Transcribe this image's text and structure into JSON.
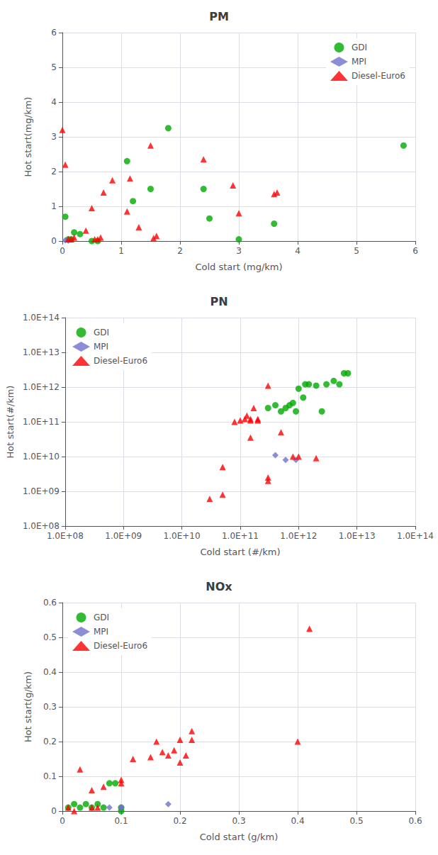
{
  "chart_data": [
    {
      "type": "scatter",
      "title": "PM",
      "xlabel": "Cold start (mg/km)",
      "ylabel": "Hot start(mg/km)",
      "xlim": [
        0,
        6
      ],
      "ylim": [
        0,
        6
      ],
      "xticks": [
        0,
        1,
        2,
        3,
        4,
        5,
        6
      ],
      "yticks": [
        0,
        1,
        2,
        3,
        4,
        5,
        6
      ],
      "grid": true,
      "legend": "upper right",
      "series": [
        {
          "name": "GDI",
          "color": "#00aa00",
          "marker": "circle",
          "x": [
            0.05,
            0.1,
            0.15,
            0.2,
            0.3,
            0.5,
            0.6,
            1.1,
            1.2,
            1.5,
            1.8,
            2.4,
            2.5,
            3.0,
            3.6,
            5.8
          ],
          "values": [
            0.7,
            0.05,
            0.05,
            0.25,
            0.2,
            0.0,
            0.0,
            2.3,
            1.15,
            1.5,
            3.25,
            1.5,
            0.65,
            0.05,
            0.5,
            2.75
          ]
        },
        {
          "name": "MPI",
          "color": "#7070cc",
          "marker": "diamond",
          "x": [
            0.05,
            0.1
          ],
          "values": [
            0.02,
            0.01
          ]
        },
        {
          "name": "Diesel-Euro6",
          "color": "#ff0000",
          "marker": "triangle",
          "x": [
            0.0,
            0.05,
            0.1,
            0.15,
            0.2,
            0.4,
            0.5,
            0.55,
            0.6,
            0.65,
            0.7,
            0.85,
            1.1,
            1.15,
            1.3,
            1.5,
            1.55,
            1.6,
            2.4,
            2.9,
            3.0,
            3.6,
            3.65
          ],
          "values": [
            3.2,
            2.2,
            0.05,
            0.05,
            0.1,
            0.3,
            0.95,
            0.05,
            0.05,
            0.1,
            1.4,
            1.75,
            0.85,
            1.8,
            0.4,
            2.75,
            0.08,
            0.15,
            2.35,
            1.6,
            0.8,
            1.35,
            1.4
          ]
        }
      ]
    },
    {
      "type": "scatter",
      "title": "PN",
      "xlabel": "Cold start (#/km)",
      "ylabel": "Hot start(#/km)",
      "log": true,
      "xlim": [
        100000000.0,
        100000000000000.0
      ],
      "ylim": [
        100000000.0,
        100000000000000.0
      ],
      "xticks": [
        {
          "value": 100000000.0,
          "label": "1.0E+08"
        },
        {
          "value": 1000000000.0,
          "label": "1.0E+09"
        },
        {
          "value": 10000000000.0,
          "label": "1.0E+10"
        },
        {
          "value": 100000000000.0,
          "label": "1.0E+11"
        },
        {
          "value": 1000000000000.0,
          "label": "1.0E+12"
        },
        {
          "value": 10000000000000.0,
          "label": "1.0E+13"
        },
        {
          "value": 100000000000000.0,
          "label": "1.0E+14"
        }
      ],
      "yticks": [
        {
          "value": 100000000.0,
          "label": "1.0E+08"
        },
        {
          "value": 1000000000.0,
          "label": "1.0E+09"
        },
        {
          "value": 10000000000.0,
          "label": "1.0E+10"
        },
        {
          "value": 100000000000.0,
          "label": "1.0E+11"
        },
        {
          "value": 1000000000000.0,
          "label": "1.0E+12"
        },
        {
          "value": 10000000000000.0,
          "label": "1.0E+13"
        },
        {
          "value": 100000000000000.0,
          "label": "1.0E+14"
        }
      ],
      "grid": true,
      "legend": "upper left",
      "series": [
        {
          "name": "GDI",
          "color": "#00aa00",
          "marker": "circle",
          "x": [
            300000000000.0,
            400000000000.0,
            500000000000.0,
            600000000000.0,
            700000000000.0,
            800000000000.0,
            900000000000.0,
            1000000000000.0,
            1200000000000.0,
            1300000000000.0,
            1500000000000.0,
            2000000000000.0,
            2500000000000.0,
            3000000000000.0,
            4000000000000.0,
            5000000000000.0,
            6000000000000.0,
            7000000000000.0
          ],
          "values": [
            250000000000.0,
            300000000000.0,
            200000000000.0,
            250000000000.0,
            300000000000.0,
            350000000000.0,
            200000000000.0,
            900000000000.0,
            500000000000.0,
            1200000000000.0,
            1200000000000.0,
            1100000000000.0,
            200000000000.0,
            1200000000000.0,
            1500000000000.0,
            1200000000000.0,
            2500000000000.0,
            2500000000000.0
          ]
        },
        {
          "name": "MPI",
          "color": "#7070cc",
          "marker": "diamond",
          "x": [
            400000000000.0,
            600000000000.0,
            900000000000.0
          ],
          "values": [
            11000000000.0,
            8000000000.0,
            8000000000.0
          ]
        },
        {
          "name": "Diesel-Euro6",
          "color": "#ff0000",
          "marker": "triangle",
          "x": [
            30000000000.0,
            50000000000.0,
            50000000000.0,
            80000000000.0,
            100000000000.0,
            120000000000.0,
            130000000000.0,
            150000000000.0,
            150000000000.0,
            150000000000.0,
            170000000000.0,
            200000000000.0,
            200000000000.0,
            300000000000.0,
            500000000000.0,
            800000000000.0,
            1000000000000.0,
            2000000000000.0,
            300000000000.0,
            300000000000.0
          ],
          "values": [
            600000000.0,
            800000000.0,
            5000000000.0,
            100000000000.0,
            110000000000.0,
            120000000000.0,
            150000000000.0,
            110000000000.0,
            120000000000.0,
            35000000000.0,
            250000000000.0,
            120000000000.0,
            110000000000.0,
            1100000000000.0,
            50000000000.0,
            10000000000.0,
            10000000000.0,
            9000000000.0,
            2000000000.0,
            2500000000.0
          ]
        }
      ]
    },
    {
      "type": "scatter",
      "title": "NOx",
      "xlabel": "Cold start (g/km)",
      "ylabel": "Hot start(g/km)",
      "xlim": [
        0,
        0.6
      ],
      "ylim": [
        0,
        0.6
      ],
      "xticks": [
        0,
        0.1,
        0.2,
        0.3,
        0.4,
        0.5,
        0.6
      ],
      "yticks": [
        0,
        0.1,
        0.2,
        0.3,
        0.4,
        0.5,
        0.6
      ],
      "grid": true,
      "legend": "upper left",
      "series": [
        {
          "name": "GDI",
          "color": "#00aa00",
          "marker": "circle",
          "x": [
            0.01,
            0.02,
            0.03,
            0.04,
            0.05,
            0.06,
            0.07,
            0.08,
            0.09,
            0.1,
            0.1
          ],
          "values": [
            0.01,
            0.02,
            0.01,
            0.02,
            0.01,
            0.02,
            0.01,
            0.08,
            0.08,
            0.0,
            0.01
          ]
        },
        {
          "name": "MPI",
          "color": "#7070cc",
          "marker": "diamond",
          "x": [
            0.08,
            0.1,
            0.1,
            0.18
          ],
          "values": [
            0.01,
            0.01,
            0.01,
            0.02
          ]
        },
        {
          "name": "Diesel-Euro6",
          "color": "#ff0000",
          "marker": "triangle",
          "x": [
            0.01,
            0.02,
            0.03,
            0.05,
            0.05,
            0.06,
            0.07,
            0.1,
            0.1,
            0.12,
            0.15,
            0.16,
            0.17,
            0.18,
            0.19,
            0.2,
            0.2,
            0.21,
            0.22,
            0.22,
            0.4,
            0.42
          ],
          "values": [
            0.01,
            0.0,
            0.12,
            0.06,
            0.01,
            0.01,
            0.07,
            0.09,
            0.08,
            0.15,
            0.155,
            0.2,
            0.17,
            0.16,
            0.175,
            0.205,
            0.14,
            0.16,
            0.23,
            0.205,
            0.2,
            0.525
          ]
        }
      ]
    }
  ]
}
